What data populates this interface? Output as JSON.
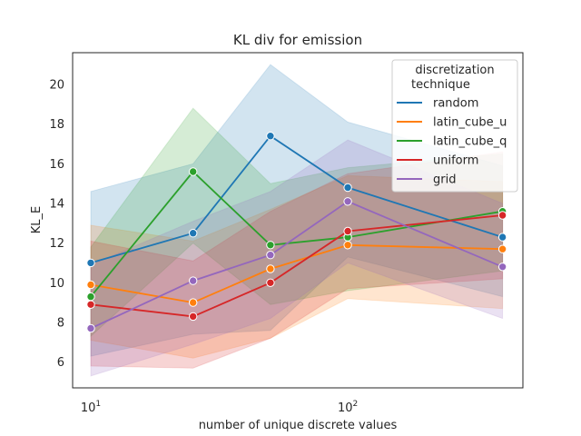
{
  "chart_data": {
    "type": "line",
    "title": "KL div for emission",
    "xlabel": "number of unique discrete values",
    "ylabel": "KL_E",
    "x_scale": "log",
    "xlim": [
      8.5,
      480
    ],
    "ylim": [
      4.7,
      21.6
    ],
    "x": [
      10,
      25,
      50,
      100,
      400
    ],
    "x_ticks": [
      {
        "value": 10,
        "base": "10",
        "exp": "1"
      },
      {
        "value": 100,
        "base": "10",
        "exp": "2"
      }
    ],
    "y_ticks": [
      6,
      8,
      10,
      12,
      14,
      16,
      18,
      20
    ],
    "grid": false,
    "legend": {
      "title_line1": "discretization",
      "title_line2": "technique",
      "placement": "top-right"
    },
    "series": [
      {
        "name": "random",
        "color": "#1f77b4",
        "values": [
          11.0,
          12.5,
          17.4,
          14.8,
          12.3
        ],
        "lower": [
          6.3,
          7.4,
          7.6,
          11.3,
          9.3
        ],
        "upper": [
          14.6,
          16.0,
          21.0,
          18.1,
          15.9
        ]
      },
      {
        "name": "latin_cube_u",
        "color": "#ff7f0e",
        "values": [
          9.9,
          9.0,
          10.7,
          11.9,
          11.7
        ],
        "lower": [
          7.1,
          6.2,
          7.2,
          9.2,
          8.7
        ],
        "upper": [
          12.9,
          12.1,
          13.7,
          15.4,
          15.1
        ]
      },
      {
        "name": "latin_cube_q",
        "color": "#2ca02c",
        "values": [
          9.3,
          15.6,
          11.9,
          12.3,
          13.6
        ],
        "lower": [
          7.3,
          12.0,
          8.9,
          9.6,
          10.6
        ],
        "upper": [
          11.8,
          18.8,
          15.0,
          15.8,
          16.5
        ]
      },
      {
        "name": "uniform",
        "color": "#d62728",
        "values": [
          8.9,
          8.3,
          10.0,
          12.6,
          13.4
        ],
        "lower": [
          5.8,
          5.7,
          7.2,
          9.7,
          10.2
        ],
        "upper": [
          12.1,
          11.1,
          13.6,
          15.5,
          16.6
        ]
      },
      {
        "name": "grid",
        "color": "#9467bd",
        "values": [
          7.7,
          10.1,
          11.4,
          14.1,
          10.8
        ],
        "lower": [
          5.3,
          6.9,
          8.2,
          11.0,
          8.2
        ],
        "upper": [
          10.9,
          13.1,
          14.6,
          17.2,
          14.0
        ]
      }
    ]
  }
}
